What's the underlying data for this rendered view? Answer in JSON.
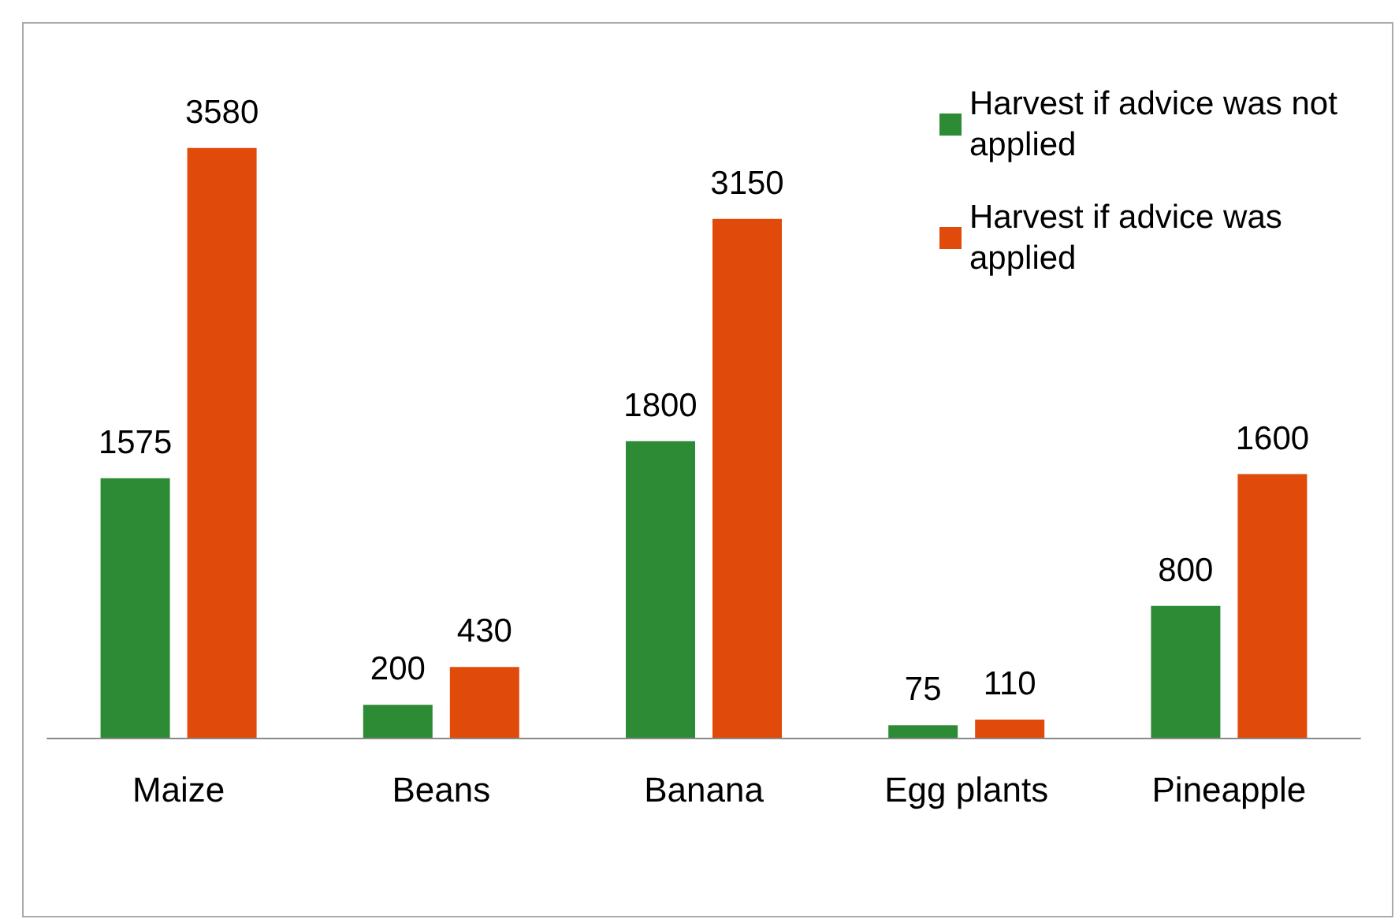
{
  "chart_data": {
    "type": "bar",
    "categories": [
      "Maize",
      "Beans",
      "Banana",
      "Egg plants",
      "Pineapple"
    ],
    "series": [
      {
        "name": "Harvest if advice was not applied",
        "color": "#2e8b35",
        "values": [
          1575,
          200,
          1800,
          75,
          800
        ]
      },
      {
        "name": "Harvest if advice was applied",
        "color": "#e04a0a",
        "values": [
          3580,
          430,
          3150,
          110,
          1600
        ]
      }
    ],
    "data_labels": true,
    "legend": "top right"
  }
}
